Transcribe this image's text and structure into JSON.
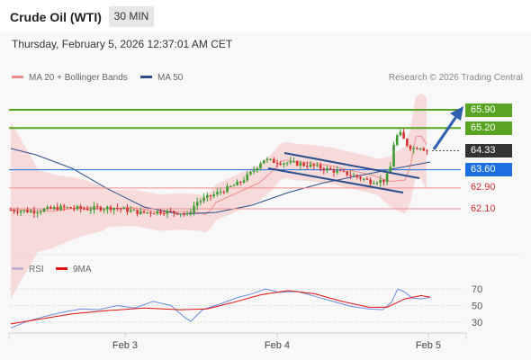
{
  "header": {
    "instrument": "Crude Oil (WTI)",
    "timeframe": "30 MIN"
  },
  "datetime": "Thursday, February 5, 2026 12:37:01 AM CET",
  "legend": {
    "ma20_label": "MA 20 + Bollinger Bands",
    "ma20_color": "#f08c8c",
    "ma50_label": "MA 50",
    "ma50_color": "#2b4f8c"
  },
  "credit": "Research © 2026 Trading Central",
  "rsi_legend": {
    "rsi_label": "RSI",
    "rsi_color": "#6a8de0",
    "ma_label": "9MA",
    "ma_color": "#e01010"
  },
  "colors": {
    "resistance": "#5aa424",
    "pivot": "#1d6fe0",
    "support": "#f08c8c",
    "bullish": "#3d9b30",
    "bearish": "#d63030",
    "channel": "#2b4f8c",
    "target_arrow": "#2d5fae",
    "last_price_bg": "#333333"
  },
  "chart_data": [
    {
      "type": "candlestick",
      "symbol": "Crude Oil (WTI)",
      "timeframe": "30 MIN",
      "x_ticks": [
        "Feb 3",
        "Feb 4",
        "Feb 5"
      ],
      "price_levels": [
        {
          "value": 65.9,
          "label": "65.90",
          "kind": "resistance"
        },
        {
          "value": 65.2,
          "label": "65.20",
          "kind": "resistance"
        },
        {
          "value": 64.33,
          "label": "64.33",
          "kind": "last_price"
        },
        {
          "value": 63.6,
          "label": "63.60",
          "kind": "pivot"
        },
        {
          "value": 62.9,
          "label": "62.90",
          "kind": "support"
        },
        {
          "value": 62.1,
          "label": "62.10",
          "kind": "support"
        }
      ],
      "series": [
        "MA 20 + Bollinger Bands",
        "MA 50"
      ]
    },
    {
      "type": "line",
      "indicators": [
        "RSI",
        "9MA"
      ],
      "y_ticks": [
        70,
        50,
        30
      ],
      "ylim": [
        15,
        85
      ]
    }
  ]
}
